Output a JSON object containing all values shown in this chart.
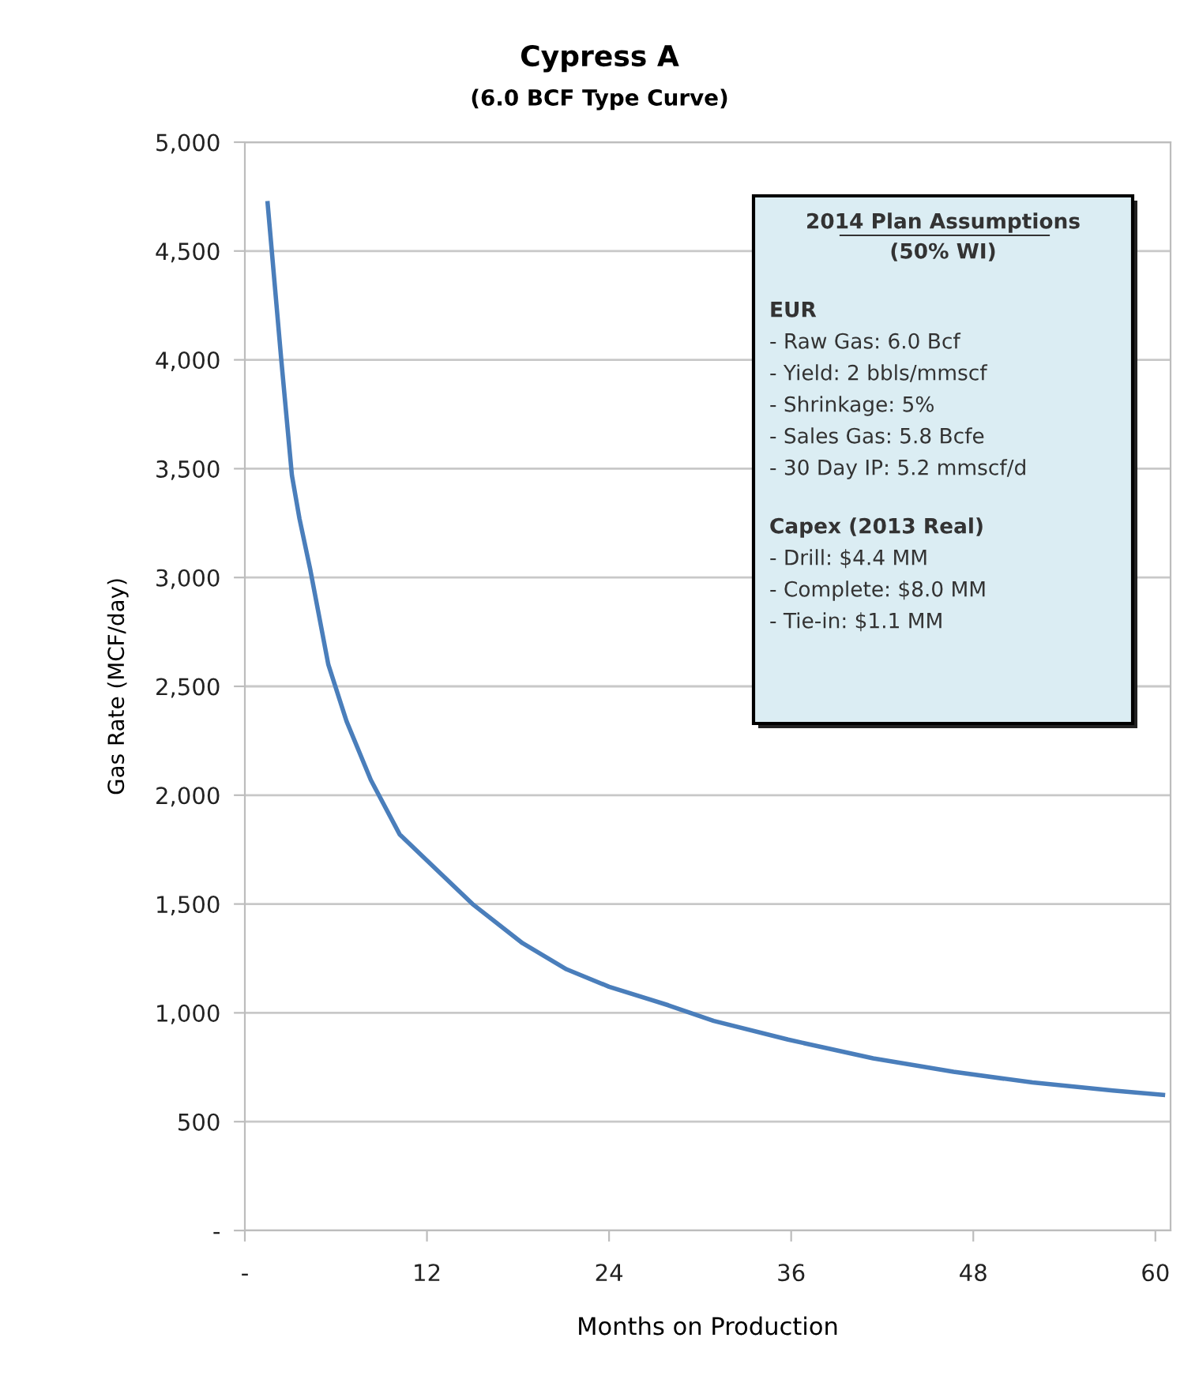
{
  "chart_data": {
    "type": "line",
    "title": "Cypress A",
    "subtitle": "(6.0 BCF Type Curve)",
    "xlabel": "Months on Production",
    "ylabel": "Gas Rate (MCF/day)",
    "series": [
      {
        "color": "#4a7ebb",
        "x": [
          1.5,
          2.4,
          3.1,
          3.6,
          4.3,
          5.5,
          6.7,
          8.3,
          10.2,
          12,
          15,
          18.3,
          21.2,
          24,
          27.9,
          30.9,
          35.8,
          41.4,
          46.7,
          51.9,
          57.2,
          60.5
        ],
        "values": [
          4720,
          4000,
          3470,
          3270,
          3040,
          2600,
          2340,
          2070,
          1820,
          1700,
          1500,
          1320,
          1200,
          1120,
          1035,
          963,
          877,
          791,
          729,
          680,
          643,
          623
        ]
      }
    ],
    "xlim": [
      0,
      61
    ],
    "xticks": [
      {
        "value": 0,
        "label": "-"
      },
      12,
      24,
      36,
      48,
      60
    ],
    "ylim": [
      0,
      5000
    ],
    "yticks": [
      {
        "value": 0,
        "label": "-"
      },
      {
        "value": 500,
        "label": "500"
      },
      {
        "value": 1000,
        "label": "1,000"
      },
      {
        "value": 1500,
        "label": "1,500"
      },
      {
        "value": 2000,
        "label": "2,000"
      },
      {
        "value": 2500,
        "label": "2,500"
      },
      {
        "value": 3000,
        "label": "3,000"
      },
      {
        "value": 3500,
        "label": "3,500"
      },
      {
        "value": 4000,
        "label": "4,000"
      },
      {
        "value": 4500,
        "label": "4,500"
      },
      {
        "value": 5000,
        "label": "5,000"
      }
    ],
    "grid": "y",
    "marker": "none",
    "line_style": "solid",
    "annotations": [
      "2014 Plan Assumptions",
      "(50% WI)",
      "EUR",
      "- Raw Gas: 6.0 Bcf",
      "- Yield: 2 bbls/mmscf",
      "- Shrinkage: 5%",
      "- Sales Gas: 5.8 Bcfe",
      "- 30 Day IP: 5.2 mmscf/d",
      "Capex (2013 Real)",
      "- Drill: $4.4 MM",
      "- Complete: $8.0 MM",
      "- Tie-in: $1.1 MM"
    ]
  }
}
